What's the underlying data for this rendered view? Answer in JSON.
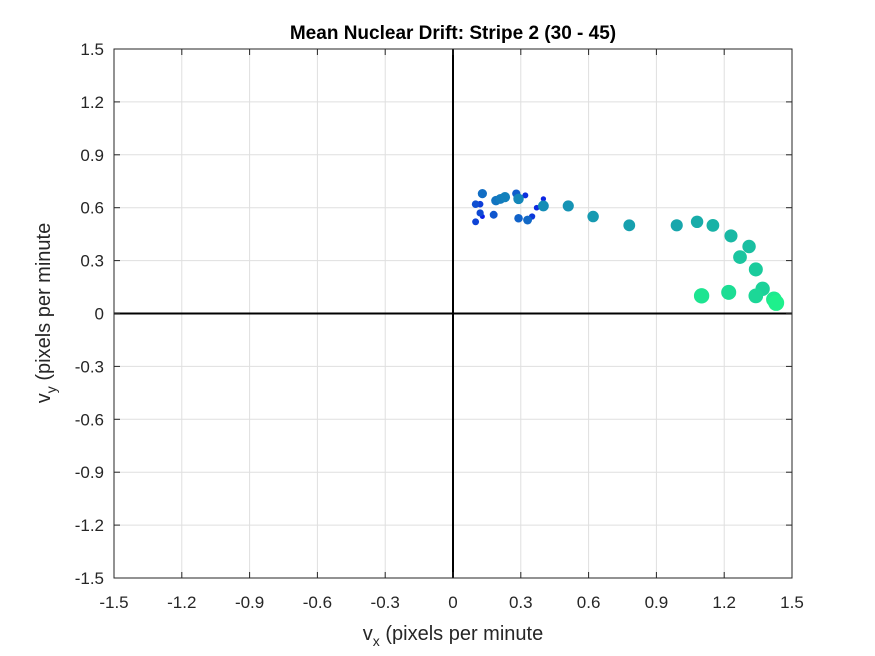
{
  "chart_data": {
    "type": "scatter",
    "title": "Mean Nuclear Drift: Stripe 2 (30 - 45)",
    "xlabel": {
      "base": "v",
      "subscript": "x",
      "text": " (pixels per minute"
    },
    "ylabel": {
      "base": "v",
      "subscript": "y",
      "text": " (pixels per minute"
    },
    "xlim": [
      -1.5,
      1.5
    ],
    "ylim": [
      -1.5,
      1.5
    ],
    "x_ticks": [
      "-1.5",
      "-1.2",
      "-0.9",
      "-0.6",
      "-0.3",
      "0",
      "0.3",
      "0.6",
      "0.9",
      "1.2",
      "1.5"
    ],
    "y_ticks": [
      "-1.5",
      "-1.2",
      "-0.9",
      "-0.6",
      "-0.3",
      "0",
      "0.3",
      "0.6",
      "0.9",
      "1.2",
      "1.5"
    ],
    "grid": true,
    "zero_lines": true,
    "color_start": "#0a1ee6",
    "color_end": "#1ef08c",
    "points": [
      {
        "x": 0.13,
        "y": 0.55
      },
      {
        "x": 0.4,
        "y": 0.65
      },
      {
        "x": 0.37,
        "y": 0.6
      },
      {
        "x": 0.32,
        "y": 0.67
      },
      {
        "x": 0.35,
        "y": 0.55
      },
      {
        "x": 0.12,
        "y": 0.62
      },
      {
        "x": 0.1,
        "y": 0.52
      },
      {
        "x": 0.12,
        "y": 0.57
      },
      {
        "x": 0.1,
        "y": 0.62
      },
      {
        "x": 0.18,
        "y": 0.56
      },
      {
        "x": 0.28,
        "y": 0.68
      },
      {
        "x": 0.29,
        "y": 0.54
      },
      {
        "x": 0.33,
        "y": 0.53
      },
      {
        "x": 0.13,
        "y": 0.68
      },
      {
        "x": 0.19,
        "y": 0.64
      },
      {
        "x": 0.21,
        "y": 0.65
      },
      {
        "x": 0.23,
        "y": 0.66
      },
      {
        "x": 0.29,
        "y": 0.65
      },
      {
        "x": 0.4,
        "y": 0.61
      },
      {
        "x": 0.51,
        "y": 0.61
      },
      {
        "x": 0.62,
        "y": 0.55
      },
      {
        "x": 0.78,
        "y": 0.5
      },
      {
        "x": 0.99,
        "y": 0.5
      },
      {
        "x": 1.08,
        "y": 0.52
      },
      {
        "x": 1.15,
        "y": 0.5
      },
      {
        "x": 1.23,
        "y": 0.44
      },
      {
        "x": 1.31,
        "y": 0.38
      },
      {
        "x": 1.27,
        "y": 0.32
      },
      {
        "x": 1.34,
        "y": 0.25
      },
      {
        "x": 1.37,
        "y": 0.14
      },
      {
        "x": 1.34,
        "y": 0.1
      },
      {
        "x": 1.22,
        "y": 0.12
      },
      {
        "x": 1.1,
        "y": 0.1
      },
      {
        "x": 1.42,
        "y": 0.08
      },
      {
        "x": 1.43,
        "y": 0.06
      }
    ]
  }
}
